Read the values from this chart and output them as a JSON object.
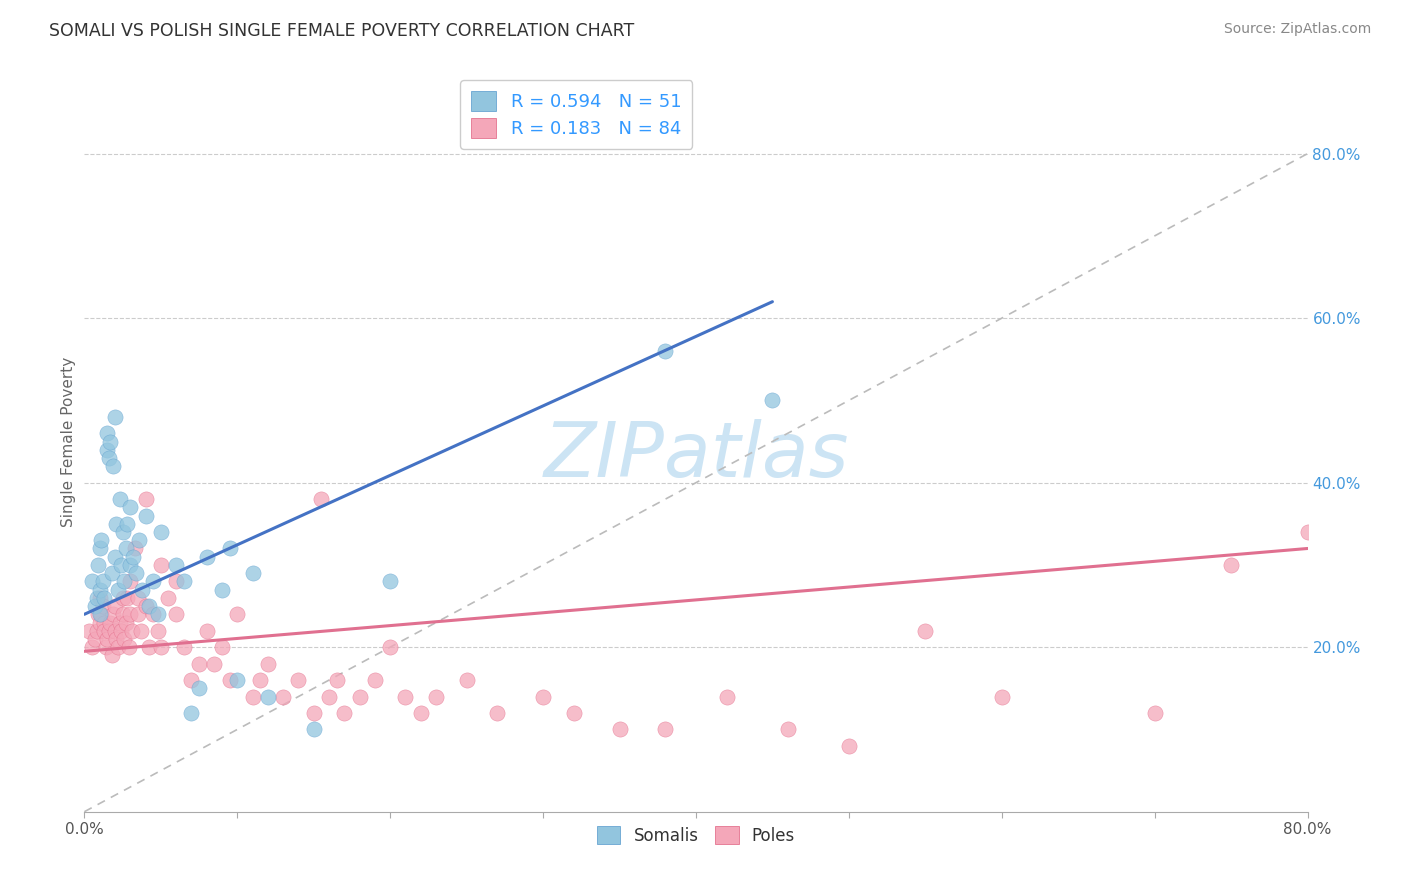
{
  "title": "SOMALI VS POLISH SINGLE FEMALE POVERTY CORRELATION CHART",
  "source": "Source: ZipAtlas.com",
  "ylabel": "Single Female Poverty",
  "xlim": [
    0.0,
    0.8
  ],
  "ylim": [
    0.0,
    0.9
  ],
  "xtick_vals": [
    0.0,
    0.1,
    0.2,
    0.3,
    0.4,
    0.5,
    0.6,
    0.7,
    0.8
  ],
  "xtick_show": [
    0.0,
    0.8
  ],
  "xtick_show_labels": [
    "0.0%",
    "80.0%"
  ],
  "ytick_vals": [
    0.2,
    0.4,
    0.6,
    0.8
  ],
  "ytick_labels": [
    "20.0%",
    "40.0%",
    "60.0%",
    "80.0%"
  ],
  "somali_color": "#92c5de",
  "poles_color": "#f4a7b9",
  "somali_edge_color": "#5599cc",
  "poles_edge_color": "#e06080",
  "somali_line_color": "#4472c4",
  "poles_line_color": "#e07090",
  "dashed_line_color": "#bbbbbb",
  "somali_R": 0.594,
  "somali_N": 51,
  "poles_R": 0.183,
  "poles_N": 84,
  "watermark_color": "#cce4f4",
  "somali_x": [
    0.005,
    0.007,
    0.008,
    0.009,
    0.01,
    0.01,
    0.01,
    0.011,
    0.012,
    0.013,
    0.015,
    0.015,
    0.016,
    0.017,
    0.018,
    0.019,
    0.02,
    0.02,
    0.021,
    0.022,
    0.023,
    0.024,
    0.025,
    0.026,
    0.027,
    0.028,
    0.03,
    0.03,
    0.032,
    0.034,
    0.036,
    0.038,
    0.04,
    0.042,
    0.045,
    0.048,
    0.05,
    0.06,
    0.065,
    0.07,
    0.075,
    0.08,
    0.09,
    0.095,
    0.1,
    0.11,
    0.12,
    0.15,
    0.2,
    0.38,
    0.45
  ],
  "somali_y": [
    0.28,
    0.25,
    0.26,
    0.3,
    0.27,
    0.32,
    0.24,
    0.33,
    0.28,
    0.26,
    0.46,
    0.44,
    0.43,
    0.45,
    0.29,
    0.42,
    0.31,
    0.48,
    0.35,
    0.27,
    0.38,
    0.3,
    0.34,
    0.28,
    0.32,
    0.35,
    0.3,
    0.37,
    0.31,
    0.29,
    0.33,
    0.27,
    0.36,
    0.25,
    0.28,
    0.24,
    0.34,
    0.3,
    0.28,
    0.12,
    0.15,
    0.31,
    0.27,
    0.32,
    0.16,
    0.29,
    0.14,
    0.1,
    0.28,
    0.56,
    0.5
  ],
  "poles_x": [
    0.003,
    0.005,
    0.007,
    0.008,
    0.009,
    0.01,
    0.01,
    0.011,
    0.012,
    0.013,
    0.013,
    0.014,
    0.015,
    0.016,
    0.017,
    0.018,
    0.019,
    0.02,
    0.02,
    0.021,
    0.022,
    0.023,
    0.024,
    0.025,
    0.025,
    0.026,
    0.027,
    0.028,
    0.029,
    0.03,
    0.03,
    0.031,
    0.033,
    0.035,
    0.035,
    0.037,
    0.04,
    0.04,
    0.042,
    0.045,
    0.048,
    0.05,
    0.05,
    0.055,
    0.06,
    0.06,
    0.065,
    0.07,
    0.075,
    0.08,
    0.085,
    0.09,
    0.095,
    0.1,
    0.11,
    0.115,
    0.12,
    0.13,
    0.14,
    0.15,
    0.155,
    0.16,
    0.165,
    0.17,
    0.18,
    0.19,
    0.2,
    0.21,
    0.22,
    0.23,
    0.25,
    0.27,
    0.3,
    0.32,
    0.35,
    0.38,
    0.42,
    0.46,
    0.5,
    0.55,
    0.6,
    0.7,
    0.75,
    0.8
  ],
  "poles_y": [
    0.22,
    0.2,
    0.21,
    0.22,
    0.24,
    0.23,
    0.26,
    0.24,
    0.25,
    0.23,
    0.22,
    0.2,
    0.21,
    0.22,
    0.23,
    0.19,
    0.24,
    0.22,
    0.25,
    0.21,
    0.2,
    0.23,
    0.22,
    0.24,
    0.26,
    0.21,
    0.23,
    0.26,
    0.2,
    0.28,
    0.24,
    0.22,
    0.32,
    0.26,
    0.24,
    0.22,
    0.25,
    0.38,
    0.2,
    0.24,
    0.22,
    0.3,
    0.2,
    0.26,
    0.24,
    0.28,
    0.2,
    0.16,
    0.18,
    0.22,
    0.18,
    0.2,
    0.16,
    0.24,
    0.14,
    0.16,
    0.18,
    0.14,
    0.16,
    0.12,
    0.38,
    0.14,
    0.16,
    0.12,
    0.14,
    0.16,
    0.2,
    0.14,
    0.12,
    0.14,
    0.16,
    0.12,
    0.14,
    0.12,
    0.1,
    0.1,
    0.14,
    0.1,
    0.08,
    0.22,
    0.14,
    0.12,
    0.3,
    0.34
  ],
  "somali_line_x0": 0.0,
  "somali_line_y0": 0.24,
  "somali_line_x1": 0.45,
  "somali_line_y1": 0.62,
  "poles_line_x0": 0.0,
  "poles_line_y0": 0.195,
  "poles_line_x1": 0.8,
  "poles_line_y1": 0.32
}
